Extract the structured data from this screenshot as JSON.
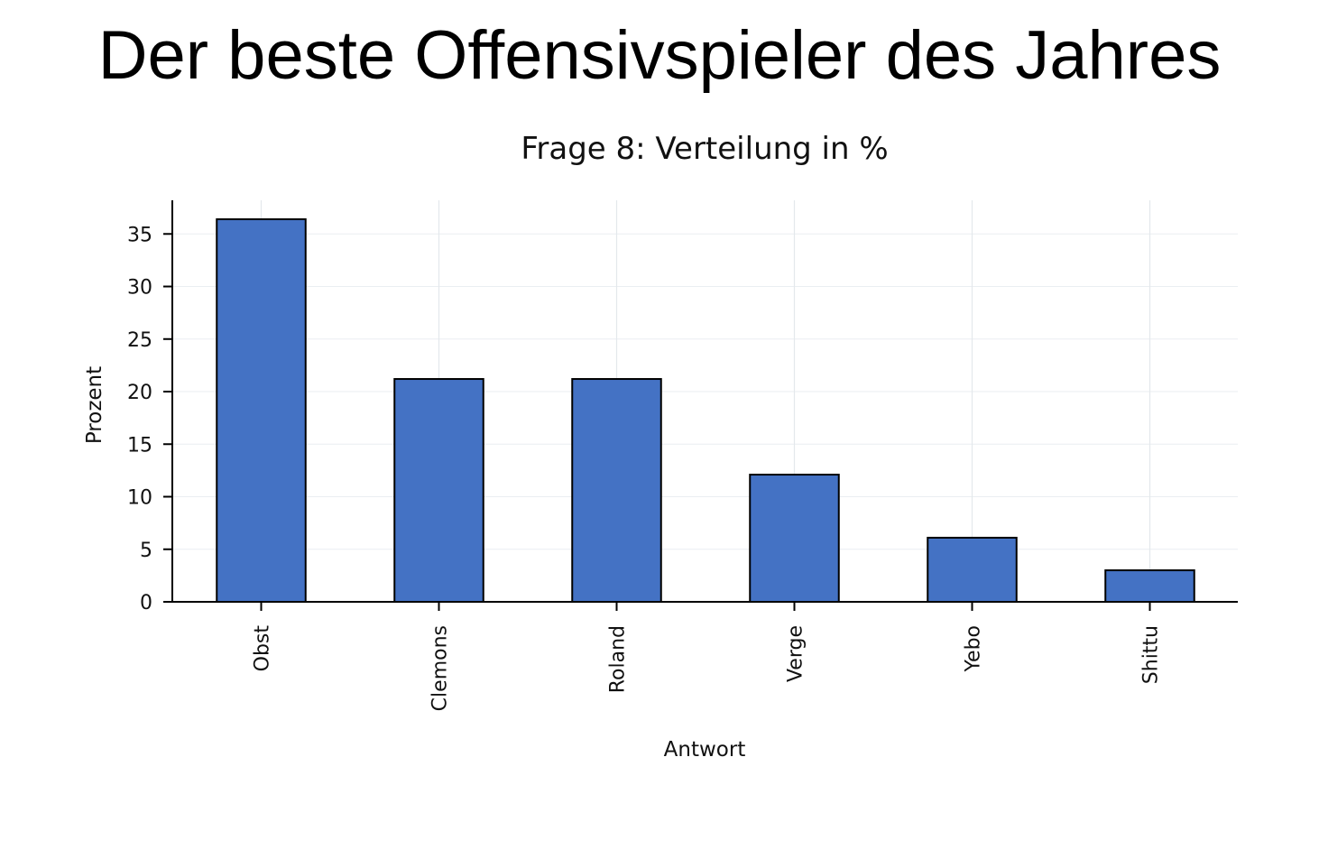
{
  "slide": {
    "title": "Der beste Offensivspieler des Jahres"
  },
  "chart_data": {
    "type": "bar",
    "title": "Frage 8: Verteilung in %",
    "xlabel": "Antwort",
    "ylabel": "Prozent",
    "categories": [
      "Obst",
      "Clemons",
      "Roland",
      "Verge",
      "Yebo",
      "Shittu"
    ],
    "values": [
      36.4,
      21.2,
      21.2,
      12.1,
      6.1,
      3.0
    ],
    "ylim": [
      0,
      38.2
    ],
    "yticks": [
      0,
      5,
      10,
      15,
      20,
      25,
      30,
      35
    ],
    "bar_color": "#4472c4",
    "bar_edge_color": "#000000",
    "grid": true,
    "legend": "none"
  }
}
